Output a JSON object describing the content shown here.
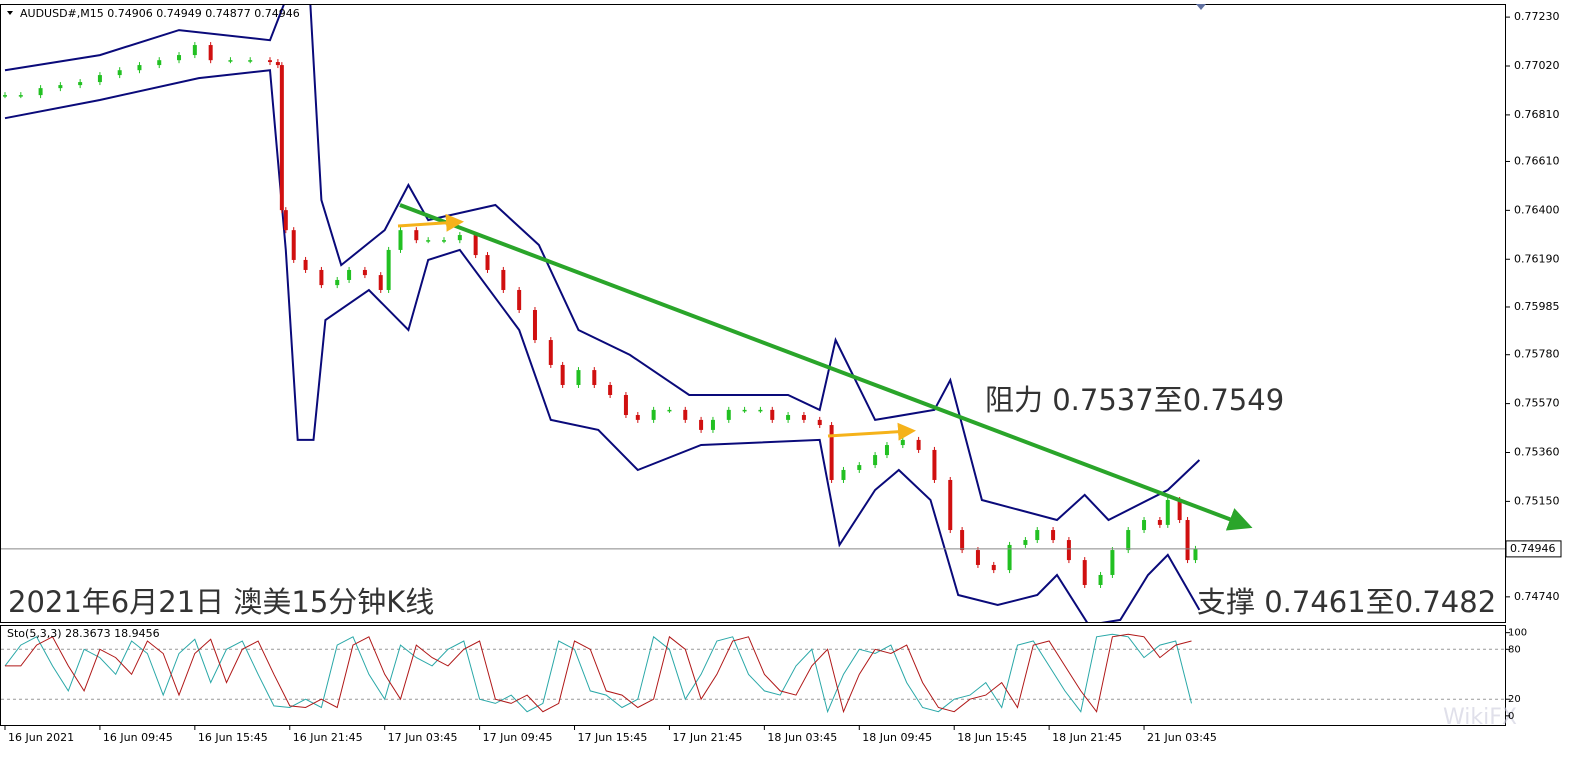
{
  "chart_data": {
    "type": "candlestick",
    "title": "AUDUSD#,M15  0.74906 0.74949 0.74877 0.74946",
    "annotations": [
      "阻力 0.7537至0.7549",
      "2021年6月21日 澳美15分钟K线",
      "支撑 0.7461至0.7482"
    ],
    "watermark": "WikiFX",
    "xlim": [
      0,
      378
    ],
    "xticks": [
      {
        "value": 0,
        "label": "16 Jun 2021"
      },
      {
        "value": 24,
        "label": "16 Jun 09:45"
      },
      {
        "value": 48,
        "label": "16 Jun 15:45"
      },
      {
        "value": 72,
        "label": "16 Jun 21:45"
      },
      {
        "value": 96,
        "label": "17 Jun 03:45"
      },
      {
        "value": 120,
        "label": "17 Jun 09:45"
      },
      {
        "value": 144,
        "label": "17 Jun 15:45"
      },
      {
        "value": 168,
        "label": "17 Jun 21:45"
      },
      {
        "value": 192,
        "label": "18 Jun 03:45"
      },
      {
        "value": 216,
        "label": "18 Jun 09:45"
      },
      {
        "value": 240,
        "label": "18 Jun 15:45"
      },
      {
        "value": 264,
        "label": "18 Jun 21:45"
      },
      {
        "value": 288,
        "label": "21 Jun 03:45"
      }
    ],
    "ylim": [
      0.74632,
      0.77282
    ],
    "yticks": [
      {
        "value": 0.7723,
        "label": "0.77230"
      },
      {
        "value": 0.7702,
        "label": "0.77020"
      },
      {
        "value": 0.7681,
        "label": "0.76810"
      },
      {
        "value": 0.7661,
        "label": "0.76610"
      },
      {
        "value": 0.764,
        "label": "0.76400"
      },
      {
        "value": 0.7619,
        "label": "0.76190"
      },
      0.75985,
      {
        "value": 0.7578,
        "label": "0.75780"
      },
      {
        "value": 0.7557,
        "label": "0.75570"
      },
      {
        "value": 0.7536,
        "label": "0.75360"
      },
      {
        "value": 0.7515,
        "label": "0.75150"
      },
      {
        "value": 0.7474,
        "label": "0.74740"
      }
    ],
    "current_price": 0.74946,
    "price": {
      "color_up": "#22c022",
      "color_down": "#d01010",
      "x": [
        0,
        4,
        9,
        14,
        19,
        24,
        29,
        34,
        39,
        44,
        48,
        52,
        57,
        62,
        67,
        69,
        70,
        71,
        73,
        76,
        80,
        84,
        87,
        91,
        95,
        97,
        100,
        104,
        107,
        111,
        115,
        119,
        122,
        126,
        130,
        134,
        138,
        141,
        145,
        149,
        153,
        157,
        160,
        164,
        168,
        172,
        176,
        179,
        183,
        187,
        191,
        194,
        198,
        202,
        206,
        209,
        212,
        216,
        220,
        223,
        227,
        231,
        235,
        239,
        242,
        246,
        250,
        254,
        258,
        261,
        265,
        269,
        273,
        277,
        280,
        284,
        288,
        292,
        294,
        297,
        299,
        301
      ],
      "close": [
        0.76895,
        0.76895,
        0.76925,
        0.76938,
        0.76951,
        0.76981,
        0.77002,
        0.77024,
        0.77045,
        0.77067,
        0.7711,
        0.77045,
        0.77045,
        0.77045,
        0.77037,
        0.77024,
        0.76401,
        0.76315,
        0.76187,
        0.76144,
        0.76079,
        0.76101,
        0.76144,
        0.76122,
        0.76058,
        0.7623,
        0.76315,
        0.76272,
        0.76272,
        0.76272,
        0.76294,
        0.76208,
        0.76144,
        0.76058,
        0.75972,
        0.75843,
        0.75736,
        0.7565,
        0.75714,
        0.7565,
        0.75607,
        0.75521,
        0.755,
        0.75543,
        0.75543,
        0.755,
        0.75457,
        0.755,
        0.75543,
        0.75543,
        0.75543,
        0.755,
        0.75521,
        0.755,
        0.75478,
        0.75242,
        0.75285,
        0.75306,
        0.75349,
        0.75392,
        0.75414,
        0.75371,
        0.75242,
        0.75027,
        0.74941,
        0.74877,
        0.74855,
        0.74963,
        0.74984,
        0.75027,
        0.74984,
        0.74898,
        0.74791,
        0.74834,
        0.74941,
        0.75027,
        0.7507,
        0.75049,
        0.75156,
        0.7507,
        0.74898,
        0.74946
      ]
    },
    "bands": [
      {
        "color": "#0a0a7a",
        "x": [
          0,
          24,
          44,
          67,
          72,
          77,
          80,
          85,
          96,
          102,
          107,
          124,
          135,
          145,
          158,
          173,
          198,
          206,
          210,
          220,
          235,
          239,
          247,
          266,
          273,
          279,
          294,
          302
        ],
        "values": [
          0.77002,
          0.77067,
          0.77174,
          0.77131,
          0.7735,
          0.7735,
          0.76444,
          0.76165,
          0.76315,
          0.76509,
          0.76358,
          0.76423,
          0.76251,
          0.75886,
          0.75779,
          0.75607,
          0.75607,
          0.75543,
          0.75843,
          0.755,
          0.75543,
          0.75671,
          0.75156,
          0.7507,
          0.75178,
          0.7507,
          0.75199,
          0.75328
        ]
      },
      {
        "color": "#0a0a7a",
        "x": [
          0,
          24,
          49,
          67,
          71,
          74,
          78,
          81,
          92,
          102,
          107,
          115,
          130,
          138,
          150,
          160,
          176,
          206,
          211,
          220,
          226,
          234,
          241,
          251,
          261,
          266,
          274,
          282,
          289,
          294,
          302
        ],
        "values": [
          0.76796,
          0.76874,
          0.76968,
          0.77002,
          0.7623,
          0.75414,
          0.75414,
          0.75929,
          0.76058,
          0.75886,
          0.76187,
          0.7623,
          0.75886,
          0.755,
          0.75457,
          0.75285,
          0.75392,
          0.75414,
          0.74963,
          0.75199,
          0.75285,
          0.75156,
          0.74748,
          0.74705,
          0.74748,
          0.74834,
          0.74619,
          0.74641,
          0.74834,
          0.7492,
          0.74684
        ]
      }
    ],
    "indicator": {
      "title": "Sto(5,3,3) 28.3673 18.9456",
      "ylim": [
        -11,
        108
      ],
      "yticks": [
        100,
        80,
        20,
        0
      ],
      "levels": [
        80,
        20
      ],
      "series": [
        {
          "color": "#2aa8a8",
          "x": [
            0,
            4,
            8,
            12,
            16,
            20,
            24,
            28,
            32,
            36,
            40,
            44,
            48,
            52,
            56,
            60,
            64,
            68,
            72,
            76,
            80,
            84,
            88,
            92,
            96,
            100,
            104,
            108,
            112,
            116,
            120,
            124,
            128,
            132,
            136,
            140,
            144,
            148,
            152,
            156,
            160,
            164,
            168,
            172,
            176,
            180,
            184,
            188,
            192,
            196,
            200,
            204,
            208,
            212,
            216,
            220,
            224,
            228,
            232,
            236,
            240,
            244,
            248,
            252,
            256,
            260,
            264,
            268,
            272,
            276,
            280,
            284,
            288,
            292,
            296,
            300
          ],
          "values": [
            60,
            85,
            95,
            60,
            30,
            80,
            70,
            50,
            90,
            75,
            25,
            75,
            92,
            40,
            80,
            90,
            50,
            12,
            10,
            20,
            10,
            85,
            95,
            50,
            20,
            85,
            70,
            60,
            80,
            90,
            20,
            15,
            25,
            5,
            15,
            90,
            80,
            30,
            25,
            10,
            20,
            95,
            80,
            20,
            50,
            90,
            95,
            50,
            30,
            25,
            60,
            80,
            5,
            50,
            80,
            75,
            85,
            40,
            10,
            5,
            20,
            25,
            40,
            10,
            85,
            90,
            60,
            30,
            5,
            95,
            98,
            95,
            70,
            85,
            90,
            15
          ]
        },
        {
          "color": "#b01818",
          "x": [
            0,
            4,
            8,
            12,
            16,
            20,
            24,
            28,
            32,
            36,
            40,
            44,
            48,
            52,
            56,
            60,
            64,
            68,
            72,
            76,
            80,
            84,
            88,
            92,
            96,
            100,
            104,
            108,
            112,
            116,
            120,
            124,
            128,
            132,
            136,
            140,
            144,
            148,
            152,
            156,
            160,
            164,
            168,
            172,
            176,
            180,
            184,
            188,
            192,
            196,
            200,
            204,
            208,
            212,
            216,
            220,
            224,
            228,
            232,
            236,
            240,
            244,
            248,
            252,
            256,
            260,
            264,
            268,
            272,
            276,
            280,
            284,
            288,
            292,
            296,
            300
          ],
          "values": [
            60,
            60,
            85,
            95,
            60,
            30,
            80,
            70,
            50,
            90,
            75,
            25,
            75,
            92,
            40,
            80,
            90,
            50,
            12,
            10,
            20,
            10,
            85,
            95,
            50,
            20,
            85,
            70,
            60,
            80,
            90,
            20,
            15,
            25,
            5,
            15,
            90,
            80,
            30,
            25,
            10,
            20,
            95,
            80,
            20,
            50,
            90,
            95,
            50,
            30,
            25,
            60,
            80,
            5,
            50,
            80,
            75,
            85,
            40,
            10,
            5,
            20,
            25,
            40,
            10,
            85,
            90,
            60,
            30,
            5,
            95,
            98,
            95,
            70,
            85,
            90
          ]
        }
      ]
    }
  }
}
